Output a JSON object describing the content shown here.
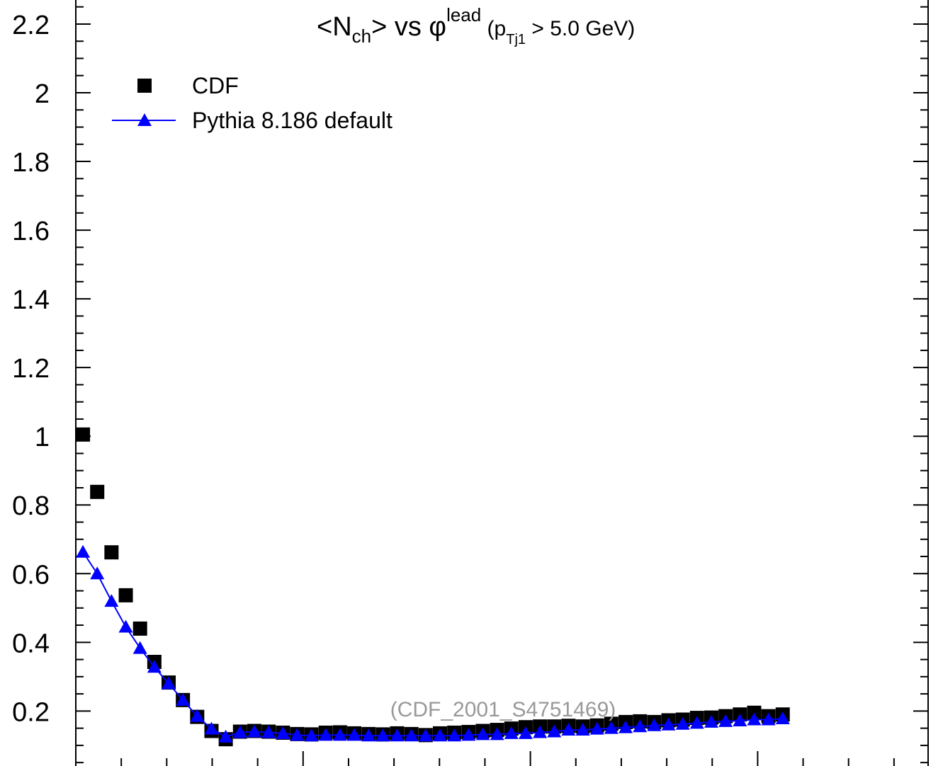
{
  "chart_data": {
    "type": "scatter",
    "title": {
      "main": "<N",
      "sub1": "ch",
      "mid": "> vs ",
      "phi": "φ",
      "sup": "lead",
      "paren_open": " (p",
      "sub2": "Tj1",
      "paren_close": " > 5.0 GeV)"
    },
    "watermark": "(CDF_2001_S4751469)",
    "ylim": [
      0.04,
      2.27
    ],
    "xlim": [
      0,
      3.75
    ],
    "y_ticks": [
      0.2,
      0.4,
      0.6,
      0.8,
      1,
      1.2,
      1.4,
      1.6,
      1.8,
      2,
      2.2
    ],
    "y_tick_labels": [
      "0.2",
      "0.4",
      "0.6",
      "0.8",
      "1",
      "1.2",
      "1.4",
      "1.6",
      "1.8",
      "2",
      "2.2"
    ],
    "grid": false,
    "legend_position": "top-left",
    "colors": {
      "data": "#000000",
      "mc": "#0000ff"
    },
    "series": [
      {
        "name": "CDF",
        "marker": "square",
        "x": [
          0.0314,
          0.0942,
          0.157,
          0.2199,
          0.2827,
          0.3456,
          0.4084,
          0.4712,
          0.5341,
          0.5969,
          0.6597,
          0.7226,
          0.7854,
          0.8482,
          0.9111,
          0.9739,
          1.0367,
          1.0996,
          1.1624,
          1.2252,
          1.2881,
          1.3509,
          1.4137,
          1.4766,
          1.5394,
          1.6022,
          1.6651,
          1.7279,
          1.7907,
          1.8536,
          1.9164,
          1.9792,
          2.0421,
          2.1049,
          2.1677,
          2.2306,
          2.2934,
          2.3562,
          2.4191,
          2.4819,
          2.5447,
          2.6076,
          2.6704,
          2.7332,
          2.7961,
          2.8589,
          2.9217,
          2.9846,
          3.0474,
          3.1102
        ],
        "values": [
          1.005,
          0.838,
          0.662,
          0.537,
          0.44,
          0.343,
          0.283,
          0.232,
          0.183,
          0.142,
          0.118,
          0.14,
          0.142,
          0.14,
          0.137,
          0.133,
          0.132,
          0.137,
          0.138,
          0.135,
          0.133,
          0.132,
          0.135,
          0.133,
          0.13,
          0.135,
          0.137,
          0.139,
          0.142,
          0.145,
          0.149,
          0.153,
          0.155,
          0.155,
          0.157,
          0.155,
          0.158,
          0.163,
          0.168,
          0.17,
          0.168,
          0.173,
          0.175,
          0.18,
          0.181,
          0.185,
          0.19,
          0.195,
          0.185,
          0.19
        ]
      },
      {
        "name": "Pythia 8.186 default",
        "marker": "triangle",
        "line": true,
        "x": [
          0.0314,
          0.0942,
          0.157,
          0.2199,
          0.2827,
          0.3456,
          0.4084,
          0.4712,
          0.5341,
          0.5969,
          0.6597,
          0.7226,
          0.7854,
          0.8482,
          0.9111,
          0.9739,
          1.0367,
          1.0996,
          1.1624,
          1.2252,
          1.2881,
          1.3509,
          1.4137,
          1.4766,
          1.5394,
          1.6022,
          1.6651,
          1.7279,
          1.7907,
          1.8536,
          1.9164,
          1.9792,
          2.0421,
          2.1049,
          2.1677,
          2.2306,
          2.2934,
          2.3562,
          2.4191,
          2.4819,
          2.5447,
          2.6076,
          2.6704,
          2.7332,
          2.7961,
          2.8589,
          2.9217,
          2.9846,
          3.0474,
          3.1102
        ],
        "values": [
          0.663,
          0.6,
          0.52,
          0.445,
          0.383,
          0.328,
          0.28,
          0.232,
          0.185,
          0.148,
          0.125,
          0.138,
          0.14,
          0.138,
          0.135,
          0.13,
          0.128,
          0.13,
          0.13,
          0.13,
          0.128,
          0.128,
          0.128,
          0.128,
          0.128,
          0.128,
          0.128,
          0.13,
          0.132,
          0.132,
          0.135,
          0.135,
          0.138,
          0.14,
          0.145,
          0.145,
          0.148,
          0.15,
          0.152,
          0.155,
          0.158,
          0.16,
          0.162,
          0.165,
          0.168,
          0.17,
          0.172,
          0.175,
          0.175,
          0.178
        ]
      }
    ]
  }
}
